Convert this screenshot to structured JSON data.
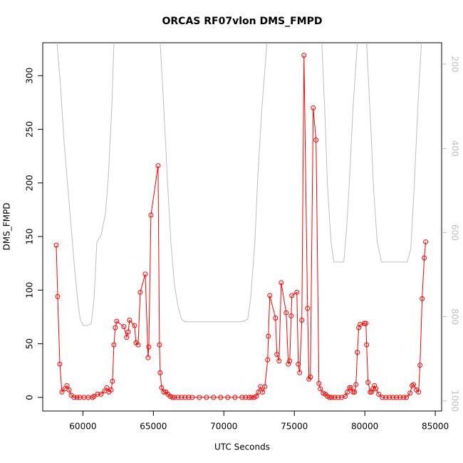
{
  "chart_data": {
    "type": "line",
    "title": "ORCAS RF07vlon DMS_FMPD",
    "xlabel": "UTC Seconds",
    "ylabel": "DMS_FMPD",
    "xlim": [
      57150,
      85450
    ],
    "xticks": [
      60000,
      65000,
      70000,
      75000,
      80000,
      85000
    ],
    "ylim": [
      -12.7,
      330.7
    ],
    "yticks": [
      0,
      50,
      100,
      150,
      200,
      250,
      300
    ],
    "y2lim": [
      1024,
      149
    ],
    "y2ticks": [
      200,
      400,
      600,
      800,
      1000
    ],
    "series": [
      {
        "color": "#bebebe",
        "axis": "y2",
        "marker": false,
        "x": [
          58160,
          58412,
          58665,
          58918,
          59170,
          59423,
          59676,
          59828,
          60030,
          60283,
          60586,
          60788,
          60990,
          61293,
          61596,
          61798,
          62050,
          62202,
          null,
          65483,
          65735,
          65988,
          66240,
          66493,
          66745,
          66998,
          67250,
          71290,
          71694,
          71896,
          72199,
          72401,
          72704,
          73058,
          null,
          76946,
          77148,
          77350,
          77603,
          77805,
          78512,
          78714,
          78916,
          79168,
          79471,
          null,
          80128,
          80380,
          80633,
          80885,
          81188,
          83006,
          83259,
          83511,
          83764,
          84016
        ],
        "values": [
          149,
          251,
          386,
          487,
          589,
          691,
          775,
          809,
          821,
          821,
          817,
          758,
          623,
          606,
          555,
          471,
          301,
          149,
          null,
          149,
          301,
          471,
          623,
          724,
          775,
          806,
          812,
          812,
          806,
          758,
          623,
          471,
          301,
          149,
          null,
          149,
          301,
          487,
          623,
          670,
          670,
          589,
          471,
          301,
          149,
          null,
          149,
          318,
          504,
          623,
          670,
          670,
          640,
          487,
          301,
          149
        ]
      },
      {
        "color": "#ff0000",
        "marker": true,
        "x": [
          58110,
          58211,
          58362,
          58514,
          58716,
          58867,
          59019,
          59170,
          59372,
          59574,
          59776,
          60079,
          60382,
          60685,
          60786,
          61039,
          61291,
          61544,
          61695,
          61847,
          61998,
          62099,
          62200,
          62301,
          62402,
          62907,
          63109,
          63210,
          63311,
          63665,
          63766,
          63917,
          64069,
          64422,
          64624,
          64675,
          64826,
          65331,
          65432,
          65483,
          65584,
          65735,
          65887,
          66038,
          66190,
          66341,
          66493,
          66745,
          66998,
          67250,
          67503,
          67755,
          68260,
          68765,
          69270,
          69775,
          70280,
          70785,
          71290,
          71543,
          71795,
          71947,
          72149,
          72300,
          72452,
          72603,
          72755,
          72906,
          73108,
          73159,
          73260,
          73664,
          73765,
          73916,
          74068,
          74421,
          74573,
          74674,
          74775,
          74825,
          75179,
          75280,
          75381,
          75532,
          75684,
          75936,
          76037,
          76138,
          76340,
          76542,
          76744,
          76845,
          77047,
          77199,
          77350,
          77502,
          77653,
          77855,
          78108,
          78360,
          78613,
          78764,
          78916,
          79017,
          79168,
          79269,
          79370,
          79471,
          79572,
          79673,
          79976,
          80077,
          80128,
          80229,
          80380,
          80481,
          80582,
          80683,
          80784,
          80986,
          81239,
          81491,
          81744,
          81996,
          82249,
          82501,
          82754,
          82956,
          83208,
          83360,
          83461,
          83663,
          83814,
          83915,
          84067,
          84218,
          84319
        ],
        "values": [
          142,
          94,
          31,
          5,
          8,
          11,
          7,
          2,
          0,
          0,
          0,
          0,
          0,
          0,
          1,
          3,
          3,
          6,
          9,
          5,
          7,
          15,
          49,
          65,
          71,
          66,
          56,
          61,
          72,
          67,
          51,
          49,
          98,
          115,
          37,
          47,
          170,
          216,
          49,
          23,
          9,
          5,
          5,
          3,
          1,
          0,
          0,
          0,
          0,
          0,
          0,
          0,
          0,
          0,
          0,
          0,
          0,
          0,
          0,
          0,
          0,
          0,
          0,
          1,
          5,
          10,
          5,
          10,
          35,
          57,
          95,
          74,
          40,
          34,
          107,
          79,
          31,
          34,
          76,
          95,
          98,
          31,
          23,
          72,
          319,
          83,
          17,
          19,
          270,
          240,
          13,
          8,
          4,
          3,
          1,
          0,
          0,
          0,
          0,
          0,
          1,
          5,
          9,
          9,
          5,
          5,
          12,
          42,
          65,
          68,
          69,
          69,
          49,
          14,
          5,
          5,
          8,
          11,
          8,
          3,
          0,
          0,
          0,
          0,
          0,
          0,
          0,
          0,
          4,
          11,
          12,
          7,
          5,
          30,
          92,
          130,
          145
        ]
      }
    ]
  }
}
